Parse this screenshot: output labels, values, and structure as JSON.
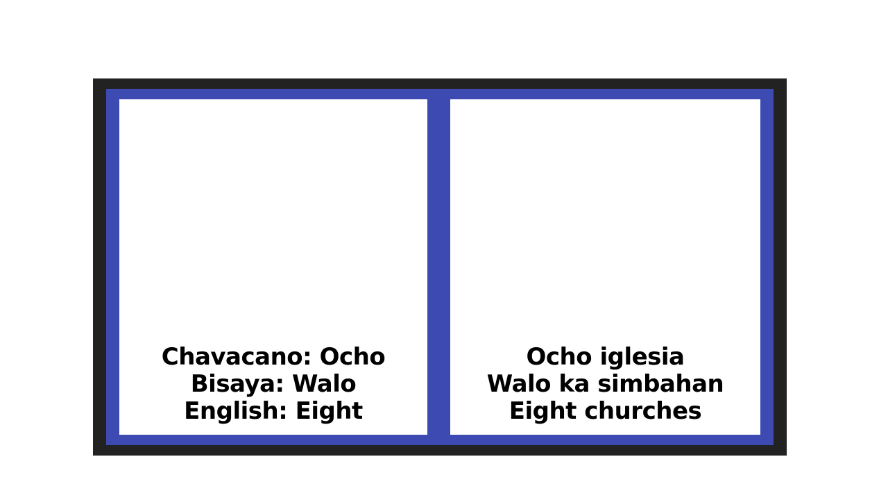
{
  "colors": {
    "outer_frame": "#222222",
    "blue_frame": "#3c4ab2",
    "panel": "#ffffff",
    "text": "#000000"
  },
  "left_panel": {
    "lines": [
      "Chavacano: Ocho",
      "Bisaya: Walo",
      "English: Eight"
    ]
  },
  "right_panel": {
    "lines": [
      "Ocho iglesia",
      "Walo ka simbahan",
      "Eight churches"
    ]
  }
}
